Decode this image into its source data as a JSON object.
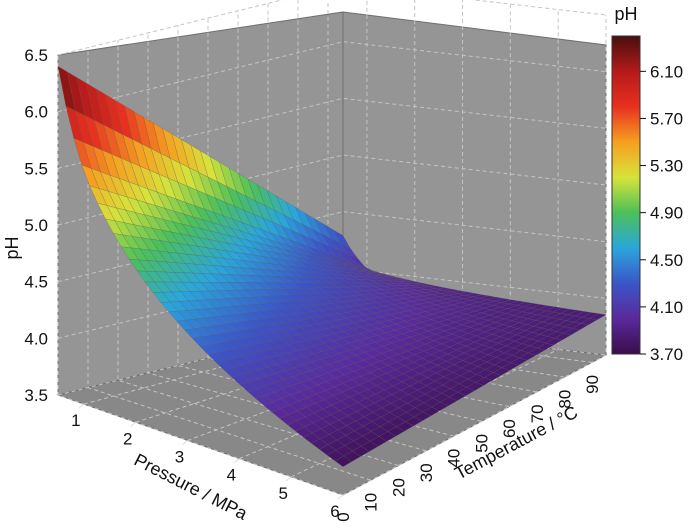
{
  "chart_data": {
    "type": "surface3d",
    "title": "",
    "xlabel": "Pressure / MPa",
    "ylabel": "Temperature / °C",
    "zlabel": "pH",
    "xlim": [
      0.5,
      6
    ],
    "ylim": [
      0,
      95
    ],
    "zlim": [
      3.5,
      6.5
    ],
    "x_ticks": [
      1,
      2,
      3,
      4,
      5,
      6
    ],
    "y_ticks": [
      0,
      10,
      20,
      30,
      40,
      50,
      60,
      70,
      80,
      90
    ],
    "z_ticks": [
      "3.5",
      "4.0",
      "4.5",
      "5.0",
      "5.5",
      "6.0",
      "6.5"
    ],
    "x_tick_labels": [
      "1",
      "2",
      "3",
      "4",
      "5",
      "6"
    ],
    "y_tick_labels": [
      "0",
      "10",
      "20",
      "30",
      "40",
      "50",
      "60",
      "70",
      "80",
      "90"
    ],
    "grid": true,
    "colorbar": {
      "title": "pH",
      "ticks": [
        "3.70",
        "4.10",
        "4.50",
        "4.90",
        "5.30",
        "5.70",
        "6.10"
      ],
      "range": [
        3.7,
        6.4
      ],
      "colors": [
        "#3a0d4a",
        "#5a2a9c",
        "#3b55c8",
        "#2aa6dc",
        "#4cc05a",
        "#d8e23a",
        "#f5a020",
        "#e83020",
        "#b41a1a",
        "#4a0e0e"
      ]
    },
    "surface_samples": [
      {
        "pressure": 0.5,
        "temperature": 0,
        "pH": 6.4
      },
      {
        "pressure": 0.5,
        "temperature": 90,
        "pH": 4.4
      },
      {
        "pressure": 1,
        "temperature": 0,
        "pH": 5.55
      },
      {
        "pressure": 1,
        "temperature": 90,
        "pH": 4.1
      },
      {
        "pressure": 6,
        "temperature": 0,
        "pH": 3.75
      },
      {
        "pressure": 6,
        "temperature": 90,
        "pH": 3.85
      }
    ]
  }
}
